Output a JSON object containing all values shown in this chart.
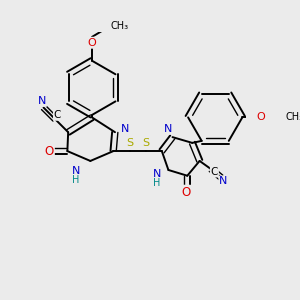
{
  "background_color": "#ebebeb",
  "colors": {
    "C": "#000000",
    "N": "#0000cc",
    "O": "#dd0000",
    "S": "#aaaa00",
    "H": "#008888",
    "bond": "#000000"
  },
  "figsize": [
    3.0,
    3.0
  ],
  "dpi": 100
}
